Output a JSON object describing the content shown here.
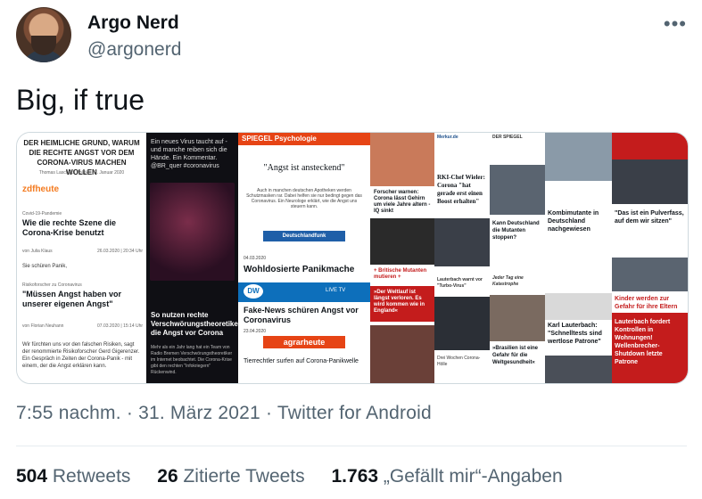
{
  "author": {
    "display_name": "Argo Nerd",
    "handle": "@argonerd",
    "more_icon": "more-dots-icon"
  },
  "tweet": {
    "text": "Big, if true"
  },
  "media": {
    "panel1": {
      "headline": "DER HEIMLICHE GRUND, WARUM DIE RECHTE ANGST VOR DEM CORONA-VIRUS MACHEN WOLLEN",
      "byline": "Thomas Laschyk | Politik | 27. Januar 2020",
      "brand": "zdfheute",
      "kicker1": "Covid-19-Pandemie",
      "title1": "Wie die rechte Szene die Corona-Krise benutzt",
      "author1": "von Julia Klaus",
      "date1": "26.03.2020 | 20:34 Uhr",
      "lead1": "Sie schüren Panik,",
      "kicker2": "Risikoforscher zu Coronavirus",
      "title2": "\"Müssen Angst haben vor unserer eigenen Angst\"",
      "author2": "von Florian Neuhann",
      "date2": "07.03.2020 | 15:14 Uhr",
      "lead2": "Wir fürchten uns vor den falschen Risiken, sagt der renommierte Risikoforscher Gerd Gigerenzer. Ein Gespräch in Zeiten der Corona-Panik - mit einem, der die Angst erklären kann."
    },
    "panel2": {
      "text": "Ein neues Virus taucht auf - und manche reiben sich die Hände. Ein Kommentar. @BR_quer #coronavirus",
      "headline": "So nutzen rechte Verschwörungstheoretiker die Angst vor Corona",
      "lead": "Mehr als ein Jahr lang hat ein Team von Radio Bremen Verschwörungstheoretiker im Internet beobachtet. Die Corona-Krise gibt den rechten \"Infokriegern\" Rückenwind."
    },
    "panel3": {
      "brand": "SPIEGEL Psychologie",
      "quote": "\"Angst ist ansteckend\"",
      "lead": "Auch in manchen deutschen Apotheken werden Schutzmasken rar. Dabei helfen sie nur bedingt gegen das Coronavirus. Ein Neurologe erklärt, wie die Angst uns steuern kann.",
      "dlf": "Deutschlandfunk",
      "date1": "04.03.2020",
      "headline1": "Wohldosierte Panikmache",
      "dw": "DW",
      "live": "LIVE TV",
      "headline2": "Fake-News schüren Angst vor Coronavirus",
      "date2": "23.04.2020",
      "agrar": "agrarheute",
      "headline3": "Tierrechtler surfen auf Corona-Panikwelle"
    },
    "panel4": {
      "teaser": "Forscher warnen: Corona lässt Gehirn um viele Jahre altern - IQ sinkt",
      "mutant": "+ Britische Mutanten mutieren +",
      "red": "»Der Weltlauf ist längst verloren. Es wird kommen wie in England«"
    },
    "panel5": {
      "brand": "Merkur.de",
      "headline1": "RKI-Chef Wieler: Corona \"hat gerade erst einen Boost erhalten\"",
      "warn": "Lauterbach warnt vor \"Turbo-Virus\"",
      "footer": "Drei Wochen Corona-Hölle"
    },
    "panel6": {
      "brand": "DER SPIEGEL",
      "headline1": "Kann Deutschland die Mutanten stoppen?",
      "kicker": "Jeder Tag eine Katastrophe",
      "headline2": "»Brasilien ist eine Gefahr für die Weltgesundheit«"
    },
    "panel7": {
      "headline1": "Kombimutante in Deutschland nachgewiesen",
      "headline2": "Karl Lauterbach: \"Schnelltests sind wertlose Patrone\""
    },
    "panel8": {
      "headline1": "\"Das ist ein Pulverfass, auf dem wir sitzen\"",
      "headline2": "Kinder werden zur Gefahr für ihre Eltern",
      "headline3": "Lauterbach fordert Kontrollen in Wohnungen! Wellenbrecher-Shutdown letzte Patrone"
    }
  },
  "meta": {
    "time": "7:55 nachm.",
    "date": "31. März 2021",
    "source": "Twitter for Android"
  },
  "stats": {
    "retweets_count": "504",
    "retweets_label": "Retweets",
    "quotes_count": "26",
    "quotes_label": "Zitierte Tweets",
    "likes_count": "1.763",
    "likes_label": "„Gefällt mir“-Angaben"
  }
}
